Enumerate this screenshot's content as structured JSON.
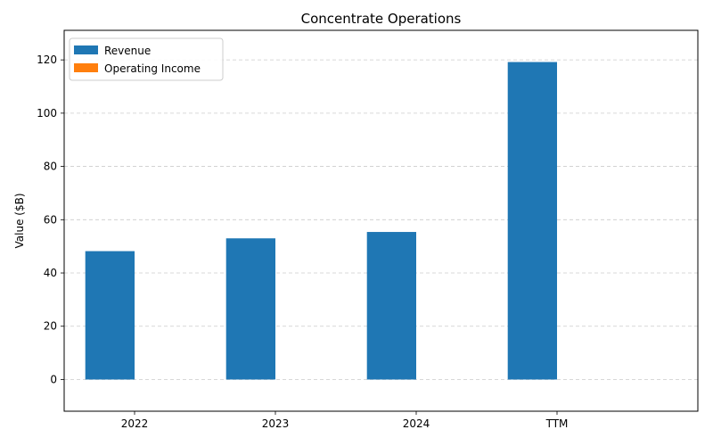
{
  "chart_data": {
    "type": "bar",
    "title": "Concentrate Operations",
    "xlabel": "",
    "ylabel": "Value ($B)",
    "categories": [
      "2022",
      "2023",
      "2024",
      "TTM"
    ],
    "series": [
      {
        "name": "Revenue",
        "color": "#1f77b4",
        "values": [
          48.2,
          53.0,
          55.4,
          119.2
        ]
      },
      {
        "name": "Operating Income",
        "color": "#ff7f0e",
        "values": [
          0,
          0,
          0,
          0
        ]
      }
    ],
    "ylim": [
      -11.9,
      131.1
    ],
    "yticks": [
      0,
      20,
      40,
      60,
      80,
      100,
      120
    ],
    "grid": true,
    "legend_position": "top-left"
  }
}
